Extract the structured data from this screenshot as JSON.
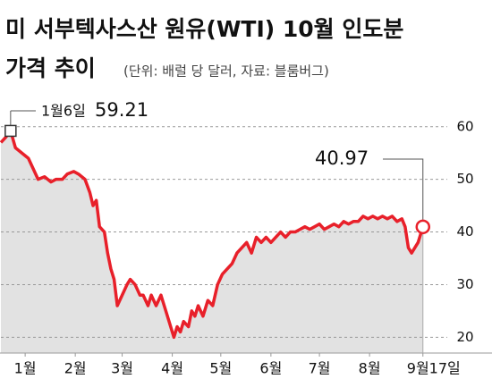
{
  "chart_data": {
    "type": "line",
    "title": "미 서부텍사스산 원유(WTI) 10월 인도분",
    "title_line2": "가격 추이",
    "subtitle": "(단위: 배럴 당 달러, 자료: 블룸버그)",
    "start_label": "1월6일",
    "x": [
      0,
      3,
      6,
      9,
      13,
      17,
      20,
      23,
      27,
      31,
      34,
      38,
      41,
      45,
      48,
      52,
      55,
      57,
      59,
      61,
      64,
      66,
      68,
      70,
      72,
      75,
      78,
      80,
      83,
      86,
      88,
      91,
      93,
      96,
      99,
      101,
      104,
      107,
      109,
      111,
      113,
      116,
      118,
      120,
      122,
      125,
      128,
      131,
      134,
      137,
      140,
      143,
      146,
      149,
      152,
      155,
      158,
      161,
      164,
      167,
      170,
      173,
      176,
      179,
      182,
      185,
      188,
      191,
      194,
      197,
      200,
      203,
      206,
      209,
      212,
      215,
      218,
      221,
      224,
      227,
      230,
      233,
      236,
      239,
      242,
      245,
      248,
      250,
      252,
      254,
      256,
      258,
      261
    ],
    "values": [
      57,
      58,
      59.21,
      56,
      55,
      54,
      52,
      50,
      50.5,
      49.5,
      50,
      50,
      51,
      51.5,
      51,
      50,
      47.5,
      45,
      46,
      41,
      40,
      36,
      33,
      31,
      26,
      28,
      30,
      31,
      30,
      28,
      28,
      26,
      28,
      26,
      28,
      26,
      23,
      20,
      22,
      21,
      23,
      22,
      25,
      24,
      26,
      24,
      27,
      26,
      30,
      32,
      33,
      34,
      36,
      37,
      38,
      36,
      39,
      38,
      39,
      38,
      39,
      40,
      39,
      40,
      40,
      40.5,
      41,
      40.5,
      41,
      41.5,
      40.5,
      41,
      41.5,
      41,
      42,
      41.5,
      42,
      42,
      43,
      42.5,
      43,
      42.5,
      43,
      42.5,
      43,
      42,
      42.5,
      41,
      37,
      36,
      37,
      38,
      40.97
    ],
    "color": "#e8202a",
    "area_color": "#e2e2e2",
    "xlim": [
      0,
      265
    ],
    "ylim": [
      17,
      62
    ],
    "xticks": [
      {
        "value": 15,
        "label": "1월"
      },
      {
        "value": 46,
        "label": "2월"
      },
      {
        "value": 75,
        "label": "3월"
      },
      {
        "value": 106,
        "label": "4월"
      },
      {
        "value": 136,
        "label": "5월"
      },
      {
        "value": 167,
        "label": "6월"
      },
      {
        "value": 197,
        "label": "7월"
      },
      {
        "value": 228,
        "label": "8월"
      },
      {
        "value": 261,
        "label": "9월17일"
      }
    ],
    "yticks": [
      20,
      30,
      40,
      50,
      60
    ],
    "grid": true
  }
}
